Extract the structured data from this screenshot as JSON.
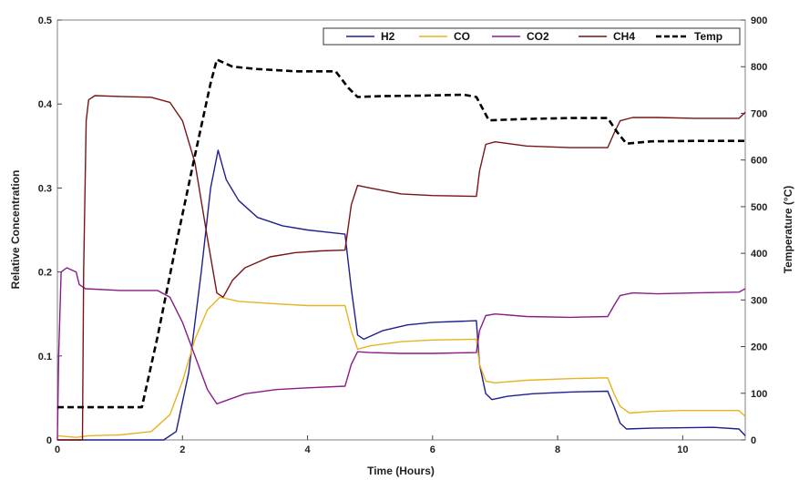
{
  "chart_data": {
    "type": "line",
    "xlabel": "Time (Hours)",
    "ylabel_left": "Relative Concentration",
    "ylabel_right": "Temperature (°C)",
    "xlim": [
      0,
      11
    ],
    "ylim_left": [
      0,
      0.5
    ],
    "ylim_right": [
      0,
      900
    ],
    "x_ticks": [
      0,
      2,
      4,
      6,
      8,
      10
    ],
    "y_left_ticks": [
      0,
      0.1,
      0.2,
      0.3,
      0.4,
      0.5
    ],
    "y_right_ticks": [
      0,
      100,
      200,
      300,
      400,
      500,
      600,
      700,
      800,
      900
    ],
    "legend_position": "top-right",
    "grid": false,
    "series": [
      {
        "name": "H2",
        "axis": "left",
        "color": "#1f1f8f",
        "dash": "solid",
        "points": [
          [
            0,
            0.0
          ],
          [
            0.3,
            0.0
          ],
          [
            1.7,
            0.0
          ],
          [
            1.9,
            0.01
          ],
          [
            2.1,
            0.08
          ],
          [
            2.3,
            0.2
          ],
          [
            2.45,
            0.3
          ],
          [
            2.57,
            0.345
          ],
          [
            2.7,
            0.31
          ],
          [
            2.9,
            0.285
          ],
          [
            3.2,
            0.265
          ],
          [
            3.6,
            0.255
          ],
          [
            4.0,
            0.25
          ],
          [
            4.6,
            0.245
          ],
          [
            4.7,
            0.18
          ],
          [
            4.8,
            0.125
          ],
          [
            4.9,
            0.12
          ],
          [
            5.2,
            0.13
          ],
          [
            5.6,
            0.137
          ],
          [
            6.0,
            0.14
          ],
          [
            6.7,
            0.142
          ],
          [
            6.75,
            0.09
          ],
          [
            6.85,
            0.055
          ],
          [
            6.95,
            0.048
          ],
          [
            7.2,
            0.052
          ],
          [
            7.6,
            0.055
          ],
          [
            8.2,
            0.057
          ],
          [
            8.8,
            0.058
          ],
          [
            8.9,
            0.04
          ],
          [
            9.0,
            0.02
          ],
          [
            9.1,
            0.013
          ],
          [
            9.5,
            0.014
          ],
          [
            10.5,
            0.015
          ],
          [
            10.9,
            0.013
          ],
          [
            11.0,
            0.005
          ]
        ]
      },
      {
        "name": "CO",
        "axis": "left",
        "color": "#e6b422",
        "dash": "solid",
        "points": [
          [
            0,
            0.005
          ],
          [
            0.3,
            0.003
          ],
          [
            0.5,
            0.005
          ],
          [
            1.0,
            0.006
          ],
          [
            1.5,
            0.01
          ],
          [
            1.8,
            0.03
          ],
          [
            2.0,
            0.07
          ],
          [
            2.2,
            0.12
          ],
          [
            2.4,
            0.155
          ],
          [
            2.6,
            0.17
          ],
          [
            2.9,
            0.165
          ],
          [
            3.5,
            0.162
          ],
          [
            4.0,
            0.16
          ],
          [
            4.6,
            0.16
          ],
          [
            4.7,
            0.13
          ],
          [
            4.8,
            0.108
          ],
          [
            5.0,
            0.112
          ],
          [
            5.5,
            0.117
          ],
          [
            6.0,
            0.119
          ],
          [
            6.7,
            0.12
          ],
          [
            6.75,
            0.09
          ],
          [
            6.85,
            0.07
          ],
          [
            7.0,
            0.068
          ],
          [
            7.5,
            0.071
          ],
          [
            8.2,
            0.073
          ],
          [
            8.8,
            0.074
          ],
          [
            8.9,
            0.055
          ],
          [
            9.0,
            0.04
          ],
          [
            9.15,
            0.032
          ],
          [
            9.5,
            0.034
          ],
          [
            10.0,
            0.035
          ],
          [
            10.9,
            0.035
          ],
          [
            11.0,
            0.028
          ]
        ]
      },
      {
        "name": "CO2",
        "axis": "left",
        "color": "#8b1a8b",
        "dash": "solid",
        "points": [
          [
            0,
            0.0
          ],
          [
            0.02,
            0.1
          ],
          [
            0.06,
            0.2
          ],
          [
            0.15,
            0.205
          ],
          [
            0.3,
            0.2
          ],
          [
            0.35,
            0.185
          ],
          [
            0.45,
            0.18
          ],
          [
            1.0,
            0.178
          ],
          [
            1.6,
            0.178
          ],
          [
            1.8,
            0.17
          ],
          [
            2.0,
            0.14
          ],
          [
            2.2,
            0.1
          ],
          [
            2.4,
            0.06
          ],
          [
            2.55,
            0.043
          ],
          [
            2.7,
            0.047
          ],
          [
            3.0,
            0.055
          ],
          [
            3.5,
            0.06
          ],
          [
            4.0,
            0.062
          ],
          [
            4.6,
            0.064
          ],
          [
            4.7,
            0.09
          ],
          [
            4.8,
            0.105
          ],
          [
            5.0,
            0.104
          ],
          [
            5.5,
            0.103
          ],
          [
            6.0,
            0.103
          ],
          [
            6.7,
            0.104
          ],
          [
            6.75,
            0.13
          ],
          [
            6.85,
            0.148
          ],
          [
            7.0,
            0.15
          ],
          [
            7.5,
            0.147
          ],
          [
            8.2,
            0.146
          ],
          [
            8.8,
            0.147
          ],
          [
            8.9,
            0.16
          ],
          [
            9.0,
            0.172
          ],
          [
            9.2,
            0.175
          ],
          [
            9.6,
            0.174
          ],
          [
            10.2,
            0.175
          ],
          [
            10.9,
            0.176
          ],
          [
            11.0,
            0.18
          ]
        ]
      },
      {
        "name": "CH4",
        "axis": "left",
        "color": "#7a1414",
        "dash": "solid",
        "points": [
          [
            0,
            0.0
          ],
          [
            0.4,
            0.0
          ],
          [
            0.42,
            0.2
          ],
          [
            0.46,
            0.38
          ],
          [
            0.5,
            0.405
          ],
          [
            0.6,
            0.41
          ],
          [
            1.0,
            0.409
          ],
          [
            1.5,
            0.408
          ],
          [
            1.8,
            0.402
          ],
          [
            2.0,
            0.38
          ],
          [
            2.2,
            0.33
          ],
          [
            2.4,
            0.24
          ],
          [
            2.55,
            0.175
          ],
          [
            2.65,
            0.17
          ],
          [
            2.8,
            0.19
          ],
          [
            3.0,
            0.205
          ],
          [
            3.4,
            0.218
          ],
          [
            3.8,
            0.223
          ],
          [
            4.2,
            0.225
          ],
          [
            4.6,
            0.226
          ],
          [
            4.7,
            0.28
          ],
          [
            4.8,
            0.303
          ],
          [
            5.0,
            0.3
          ],
          [
            5.5,
            0.293
          ],
          [
            6.0,
            0.291
          ],
          [
            6.7,
            0.29
          ],
          [
            6.75,
            0.32
          ],
          [
            6.85,
            0.352
          ],
          [
            7.0,
            0.355
          ],
          [
            7.5,
            0.35
          ],
          [
            8.2,
            0.348
          ],
          [
            8.8,
            0.348
          ],
          [
            8.9,
            0.365
          ],
          [
            9.0,
            0.38
          ],
          [
            9.2,
            0.384
          ],
          [
            9.6,
            0.384
          ],
          [
            10.2,
            0.383
          ],
          [
            10.9,
            0.383
          ],
          [
            11.0,
            0.39
          ]
        ]
      },
      {
        "name": "Temp",
        "axis": "right",
        "color": "#000000",
        "dash": "dashed",
        "points": [
          [
            0,
            70
          ],
          [
            0.5,
            70
          ],
          [
            1.35,
            70
          ],
          [
            1.6,
            220
          ],
          [
            1.9,
            420
          ],
          [
            2.2,
            610
          ],
          [
            2.45,
            765
          ],
          [
            2.55,
            815
          ],
          [
            2.8,
            800
          ],
          [
            3.2,
            795
          ],
          [
            3.8,
            790
          ],
          [
            4.45,
            790
          ],
          [
            4.65,
            755
          ],
          [
            4.8,
            735
          ],
          [
            5.2,
            737
          ],
          [
            5.8,
            738
          ],
          [
            6.5,
            740
          ],
          [
            6.7,
            735
          ],
          [
            6.9,
            685
          ],
          [
            7.5,
            688
          ],
          [
            8.2,
            690
          ],
          [
            8.8,
            690
          ],
          [
            8.95,
            660
          ],
          [
            9.1,
            635
          ],
          [
            9.5,
            640
          ],
          [
            10.2,
            641
          ],
          [
            11.0,
            641
          ]
        ]
      }
    ]
  }
}
